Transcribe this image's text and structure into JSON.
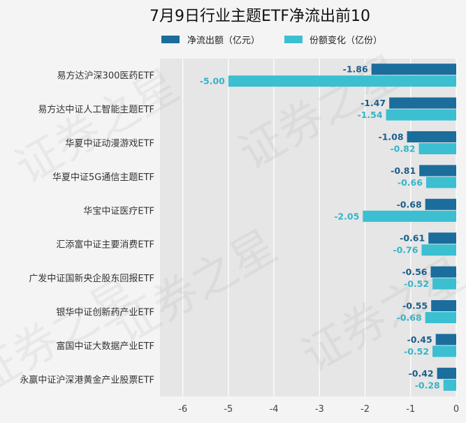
{
  "chart_data": {
    "type": "bar",
    "orientation": "horizontal",
    "title": "7月9日行业主题ETF净流出前10",
    "categories": [
      "易方达沪深300医药ETF",
      "易方达中证人工智能主题ETF",
      "华夏中证动漫游戏ETF",
      "华夏中证5G通信主题ETF",
      "华宝中证医疗ETF",
      "汇添富中证主要消费ETF",
      "广发中证国新央企股东回报ETF",
      "银华中证创新药产业ETF",
      "富国中证大数据产业ETF",
      "永赢中证沪深港黄金产业股票ETF"
    ],
    "series": [
      {
        "name": "净流出额（亿元）",
        "color": "#1b6d9c",
        "label_color": "#1b5f8a",
        "values": [
          -1.86,
          -1.47,
          -1.08,
          -0.81,
          -0.68,
          -0.61,
          -0.56,
          -0.55,
          -0.45,
          -0.42
        ],
        "labels": [
          "-1.86",
          "-1.47",
          "-1.08",
          "-0.81",
          "-0.68",
          "-0.61",
          "-0.56",
          "-0.55",
          "-0.45",
          "-0.42"
        ]
      },
      {
        "name": "份额变化（亿份）",
        "color": "#3bbfd1",
        "label_color": "#35b4c7",
        "values": [
          -5.0,
          -1.54,
          -0.82,
          -0.66,
          -2.05,
          -0.76,
          -0.52,
          -0.68,
          -0.52,
          -0.28
        ],
        "labels": [
          "-5.00",
          "-1.54",
          "-0.82",
          "-0.66",
          "-2.05",
          "-0.76",
          "-0.52",
          "-0.68",
          "-0.52",
          "-0.28"
        ]
      }
    ],
    "xlim": [
      -6.5,
      0
    ],
    "xticks": [
      -6,
      -5,
      -4,
      -3,
      -2,
      -1,
      0
    ],
    "xtick_labels": [
      "-6",
      "-5",
      "-4",
      "-3",
      "-2",
      "-1",
      "0"
    ],
    "grid": true,
    "legend_position": "top",
    "plot_background": "#e6e6e6",
    "grid_color": "#ffffff"
  },
  "watermark": "证券之星"
}
